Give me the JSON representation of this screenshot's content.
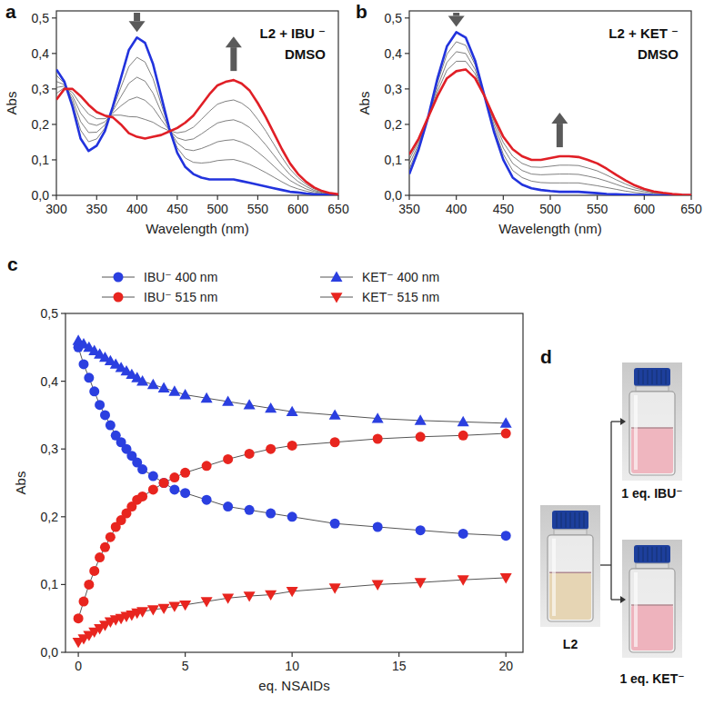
{
  "chart_data": [
    {
      "type": "line",
      "panel_label": "a",
      "annotations": [
        "L2 + IBU ⁻",
        "DMSO"
      ],
      "x_label": "Wavelength (nm)",
      "y_label": "Abs",
      "x": [
        300,
        310,
        320,
        330,
        340,
        350,
        360,
        370,
        380,
        390,
        400,
        410,
        420,
        430,
        440,
        450,
        460,
        470,
        480,
        490,
        500,
        510,
        520,
        530,
        540,
        550,
        560,
        570,
        580,
        590,
        600,
        610,
        620,
        630,
        640,
        650
      ],
      "series": [
        {
          "color": "#2233dd",
          "values": [
            0.355,
            0.32,
            0.25,
            0.16,
            0.125,
            0.14,
            0.18,
            0.25,
            0.33,
            0.41,
            0.445,
            0.43,
            0.37,
            0.28,
            0.19,
            0.12,
            0.08,
            0.06,
            0.05,
            0.045,
            0.045,
            0.045,
            0.045,
            0.04,
            0.035,
            0.03,
            0.025,
            0.02,
            0.015,
            0.01,
            0.008,
            0.005,
            0.003,
            0.002,
            0.001,
            0.0
          ]
        },
        {
          "color": "#555555",
          "values": [
            0.338,
            0.316,
            0.26,
            0.184,
            0.151,
            0.159,
            0.189,
            0.244,
            0.304,
            0.363,
            0.389,
            0.376,
            0.329,
            0.258,
            0.188,
            0.134,
            0.105,
            0.093,
            0.091,
            0.093,
            0.098,
            0.1,
            0.101,
            0.095,
            0.087,
            0.076,
            0.064,
            0.051,
            0.038,
            0.026,
            0.018,
            0.012,
            0.007,
            0.004,
            0.002,
            0.001
          ]
        },
        {
          "color": "#555555",
          "values": [
            0.321,
            0.312,
            0.27,
            0.208,
            0.177,
            0.178,
            0.198,
            0.238,
            0.278,
            0.316,
            0.333,
            0.322,
            0.288,
            0.236,
            0.186,
            0.148,
            0.13,
            0.126,
            0.132,
            0.141,
            0.151,
            0.155,
            0.157,
            0.15,
            0.139,
            0.122,
            0.103,
            0.082,
            0.061,
            0.042,
            0.029,
            0.018,
            0.011,
            0.006,
            0.003,
            0.001
          ]
        },
        {
          "color": "#555555",
          "values": [
            0.304,
            0.308,
            0.28,
            0.232,
            0.203,
            0.197,
            0.207,
            0.232,
            0.252,
            0.269,
            0.277,
            0.268,
            0.247,
            0.214,
            0.184,
            0.162,
            0.155,
            0.159,
            0.173,
            0.189,
            0.204,
            0.21,
            0.213,
            0.205,
            0.191,
            0.168,
            0.142,
            0.113,
            0.084,
            0.058,
            0.039,
            0.025,
            0.014,
            0.008,
            0.004,
            0.002
          ]
        },
        {
          "color": "#555555",
          "values": [
            0.287,
            0.304,
            0.29,
            0.256,
            0.229,
            0.216,
            0.216,
            0.226,
            0.226,
            0.222,
            0.221,
            0.214,
            0.206,
            0.192,
            0.182,
            0.176,
            0.18,
            0.192,
            0.214,
            0.237,
            0.257,
            0.265,
            0.269,
            0.26,
            0.243,
            0.214,
            0.181,
            0.144,
            0.107,
            0.074,
            0.05,
            0.031,
            0.018,
            0.01,
            0.005,
            0.002
          ]
        },
        {
          "color": "#e01f26",
          "values": [
            0.27,
            0.3,
            0.3,
            0.28,
            0.255,
            0.235,
            0.225,
            0.22,
            0.2,
            0.175,
            0.165,
            0.16,
            0.165,
            0.17,
            0.18,
            0.19,
            0.205,
            0.225,
            0.255,
            0.285,
            0.31,
            0.32,
            0.325,
            0.315,
            0.295,
            0.26,
            0.22,
            0.175,
            0.13,
            0.09,
            0.06,
            0.038,
            0.022,
            0.012,
            0.006,
            0.003
          ]
        }
      ],
      "xlim": [
        300,
        650
      ],
      "ylim": [
        0,
        0.52
      ],
      "xticks": [
        300,
        350,
        400,
        450,
        500,
        550,
        600,
        650
      ],
      "yticks": [
        {
          "value": 0,
          "label": "0,0"
        },
        {
          "value": 0.1,
          "label": "0,1"
        },
        {
          "value": 0.2,
          "label": "0,2"
        },
        {
          "value": 0.3,
          "label": "0,3"
        },
        {
          "value": 0.4,
          "label": "0,4"
        },
        {
          "value": 0.5,
          "label": "0,5"
        }
      ]
    },
    {
      "type": "line",
      "panel_label": "b",
      "annotations": [
        "L2 + KET ⁻",
        "DMSO"
      ],
      "x_label": "Wavelength (nm)",
      "y_label": "Abs",
      "x": [
        350,
        360,
        370,
        380,
        390,
        400,
        410,
        420,
        430,
        440,
        450,
        460,
        470,
        480,
        490,
        500,
        510,
        520,
        530,
        540,
        550,
        560,
        570,
        580,
        590,
        600,
        610,
        620,
        630,
        640,
        650
      ],
      "series": [
        {
          "color": "#2233dd",
          "values": [
            0.06,
            0.13,
            0.22,
            0.33,
            0.42,
            0.46,
            0.445,
            0.38,
            0.28,
            0.18,
            0.1,
            0.05,
            0.03,
            0.02,
            0.015,
            0.012,
            0.01,
            0.01,
            0.01,
            0.008,
            0.006,
            0.004,
            0.003,
            0.002,
            0.001,
            0.001,
            0,
            0,
            0,
            0,
            0
          ]
        },
        {
          "color": "#555555",
          "values": [
            0.074,
            0.138,
            0.22,
            0.318,
            0.398,
            0.433,
            0.423,
            0.368,
            0.28,
            0.19,
            0.116,
            0.07,
            0.05,
            0.04,
            0.036,
            0.035,
            0.035,
            0.035,
            0.035,
            0.031,
            0.027,
            0.022,
            0.017,
            0.012,
            0.008,
            0.005,
            0.003,
            0.002,
            0.001,
            0.001,
            0
          ]
        },
        {
          "color": "#555555",
          "values": [
            0.088,
            0.145,
            0.22,
            0.305,
            0.375,
            0.405,
            0.4,
            0.355,
            0.28,
            0.2,
            0.133,
            0.09,
            0.07,
            0.06,
            0.058,
            0.059,
            0.06,
            0.06,
            0.059,
            0.054,
            0.048,
            0.04,
            0.031,
            0.022,
            0.015,
            0.01,
            0.006,
            0.004,
            0.002,
            0.001,
            0
          ]
        },
        {
          "color": "#555555",
          "values": [
            0.101,
            0.153,
            0.22,
            0.293,
            0.353,
            0.378,
            0.378,
            0.343,
            0.28,
            0.21,
            0.149,
            0.11,
            0.09,
            0.08,
            0.079,
            0.082,
            0.085,
            0.085,
            0.084,
            0.077,
            0.069,
            0.057,
            0.044,
            0.032,
            0.021,
            0.014,
            0.008,
            0.005,
            0.003,
            0.002,
            0.001
          ]
        },
        {
          "color": "#e01f26",
          "values": [
            0.115,
            0.16,
            0.22,
            0.28,
            0.33,
            0.35,
            0.355,
            0.33,
            0.28,
            0.22,
            0.165,
            0.13,
            0.11,
            0.1,
            0.1,
            0.105,
            0.11,
            0.11,
            0.108,
            0.1,
            0.09,
            0.075,
            0.058,
            0.042,
            0.028,
            0.018,
            0.011,
            0.007,
            0.004,
            0.002,
            0.001
          ]
        }
      ],
      "xlim": [
        350,
        650
      ],
      "ylim": [
        0,
        0.52
      ],
      "xticks": [
        350,
        400,
        450,
        500,
        550,
        600,
        650
      ],
      "yticks": [
        {
          "value": 0,
          "label": "0,0"
        },
        {
          "value": 0.1,
          "label": "0,1"
        },
        {
          "value": 0.2,
          "label": "0,2"
        },
        {
          "value": 0.3,
          "label": "0,3"
        },
        {
          "value": 0.4,
          "label": "0,4"
        },
        {
          "value": 0.5,
          "label": "0,5"
        }
      ]
    },
    {
      "type": "line",
      "panel_label": "c",
      "legend": "top",
      "x_label": "eq. NSAIDs",
      "y_label": "Abs",
      "x": [
        0,
        0.25,
        0.5,
        0.75,
        1,
        1.25,
        1.5,
        1.75,
        2,
        2.25,
        2.5,
        2.75,
        3,
        3.5,
        4,
        4.5,
        5,
        6,
        7,
        8,
        9,
        10,
        12,
        14,
        16,
        18,
        20
      ],
      "series": [
        {
          "name": "IBU⁻ 400 nm",
          "color": "#2b3fe0",
          "marker": "circle",
          "values": [
            0.45,
            0.425,
            0.405,
            0.385,
            0.365,
            0.35,
            0.335,
            0.32,
            0.31,
            0.3,
            0.29,
            0.28,
            0.27,
            0.26,
            0.25,
            0.24,
            0.235,
            0.225,
            0.215,
            0.21,
            0.205,
            0.2,
            0.19,
            0.185,
            0.18,
            0.175,
            0.172
          ]
        },
        {
          "name": "IBU⁻ 515 nm",
          "color": "#e8251f",
          "marker": "circle",
          "values": [
            0.05,
            0.075,
            0.1,
            0.12,
            0.14,
            0.155,
            0.17,
            0.185,
            0.195,
            0.205,
            0.215,
            0.225,
            0.23,
            0.24,
            0.25,
            0.258,
            0.265,
            0.275,
            0.285,
            0.293,
            0.3,
            0.305,
            0.31,
            0.315,
            0.318,
            0.32,
            0.323
          ]
        },
        {
          "name": "KET⁻ 400 nm",
          "color": "#2b3fe0",
          "marker": "triangle-up",
          "values": [
            0.46,
            0.455,
            0.45,
            0.445,
            0.44,
            0.435,
            0.43,
            0.425,
            0.42,
            0.415,
            0.41,
            0.405,
            0.4,
            0.395,
            0.39,
            0.385,
            0.38,
            0.375,
            0.37,
            0.365,
            0.36,
            0.355,
            0.35,
            0.345,
            0.342,
            0.34,
            0.338
          ]
        },
        {
          "name": "KET⁻ 515 nm",
          "color": "#e8251f",
          "marker": "triangle-down",
          "values": [
            0.015,
            0.02,
            0.025,
            0.03,
            0.035,
            0.04,
            0.045,
            0.048,
            0.05,
            0.053,
            0.055,
            0.058,
            0.06,
            0.063,
            0.065,
            0.068,
            0.07,
            0.075,
            0.08,
            0.083,
            0.085,
            0.09,
            0.095,
            0.1,
            0.103,
            0.107,
            0.11
          ]
        }
      ],
      "xlim": [
        -0.6,
        20.8
      ],
      "ylim": [
        0,
        0.5
      ],
      "xticks": [
        0,
        5,
        10,
        15,
        20
      ],
      "yticks": [
        {
          "value": 0,
          "label": "0,0"
        },
        {
          "value": 0.1,
          "label": "0,1"
        },
        {
          "value": 0.2,
          "label": "0,2"
        },
        {
          "value": 0.3,
          "label": "0,3"
        },
        {
          "value": 0.4,
          "label": "0,4"
        },
        {
          "value": 0.5,
          "label": "0,5"
        }
      ]
    }
  ],
  "photos": {
    "panel_label": "d",
    "vials": [
      {
        "label": "L2",
        "color": "#e6d5b4"
      },
      {
        "label": "1 eq. IBU⁻",
        "color": "#efb6bf"
      },
      {
        "label": "1 eq. KET⁻",
        "color": "#eeb3bd"
      }
    ]
  }
}
